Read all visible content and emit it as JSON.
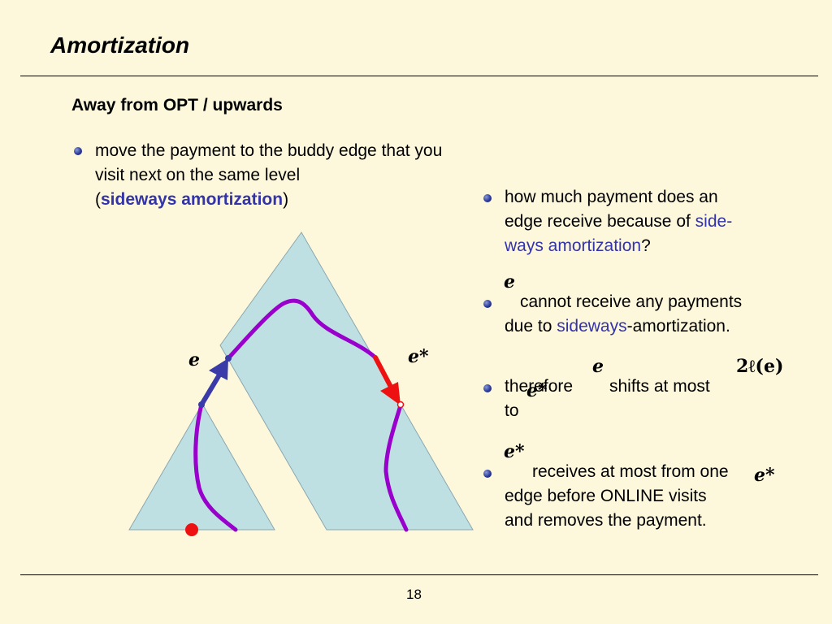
{
  "slide": {
    "title": "Amortization",
    "subtitle": "Away from OPT / upwards",
    "page_number": "18"
  },
  "left_bullet": {
    "line1": "move the payment to the buddy edge that you",
    "line2": "visit next on the same level",
    "open_paren": "(",
    "highlight": "sideways amortization",
    "close_paren": ")"
  },
  "right_bullets": {
    "b1": {
      "line1": "how much payment does an",
      "line2_plain": "edge receive because of ",
      "line2_hl": "side-",
      "line3_hl": "ways amortization",
      "line3_plain": "?"
    },
    "b2": {
      "math_label": "e",
      "line1": "cannot receive any payments",
      "line2_plain": "due to ",
      "line2_hl": "sideways",
      "line2_rest": "-amortization."
    },
    "b3": {
      "math_e": "e",
      "math_bound": "2ℓ(e)",
      "math_estar": "e*",
      "line1a": "therefore",
      "line1b": "shifts at most",
      "line2": "to"
    },
    "b4": {
      "math_label": "e*",
      "math_inline": "e*",
      "line1": "receives at most from one",
      "line2": "edge before ONLINE visits",
      "line3": "and removes the payment."
    }
  },
  "diagram": {
    "label_e": "e",
    "label_estar": "e*",
    "colors": {
      "triangle_fill": "#bfe0e3",
      "path_purple": "#9900cc",
      "arrow_blue": "#3a3aa8",
      "arrow_red": "#ee1111",
      "dot_red": "#ee1111"
    }
  }
}
